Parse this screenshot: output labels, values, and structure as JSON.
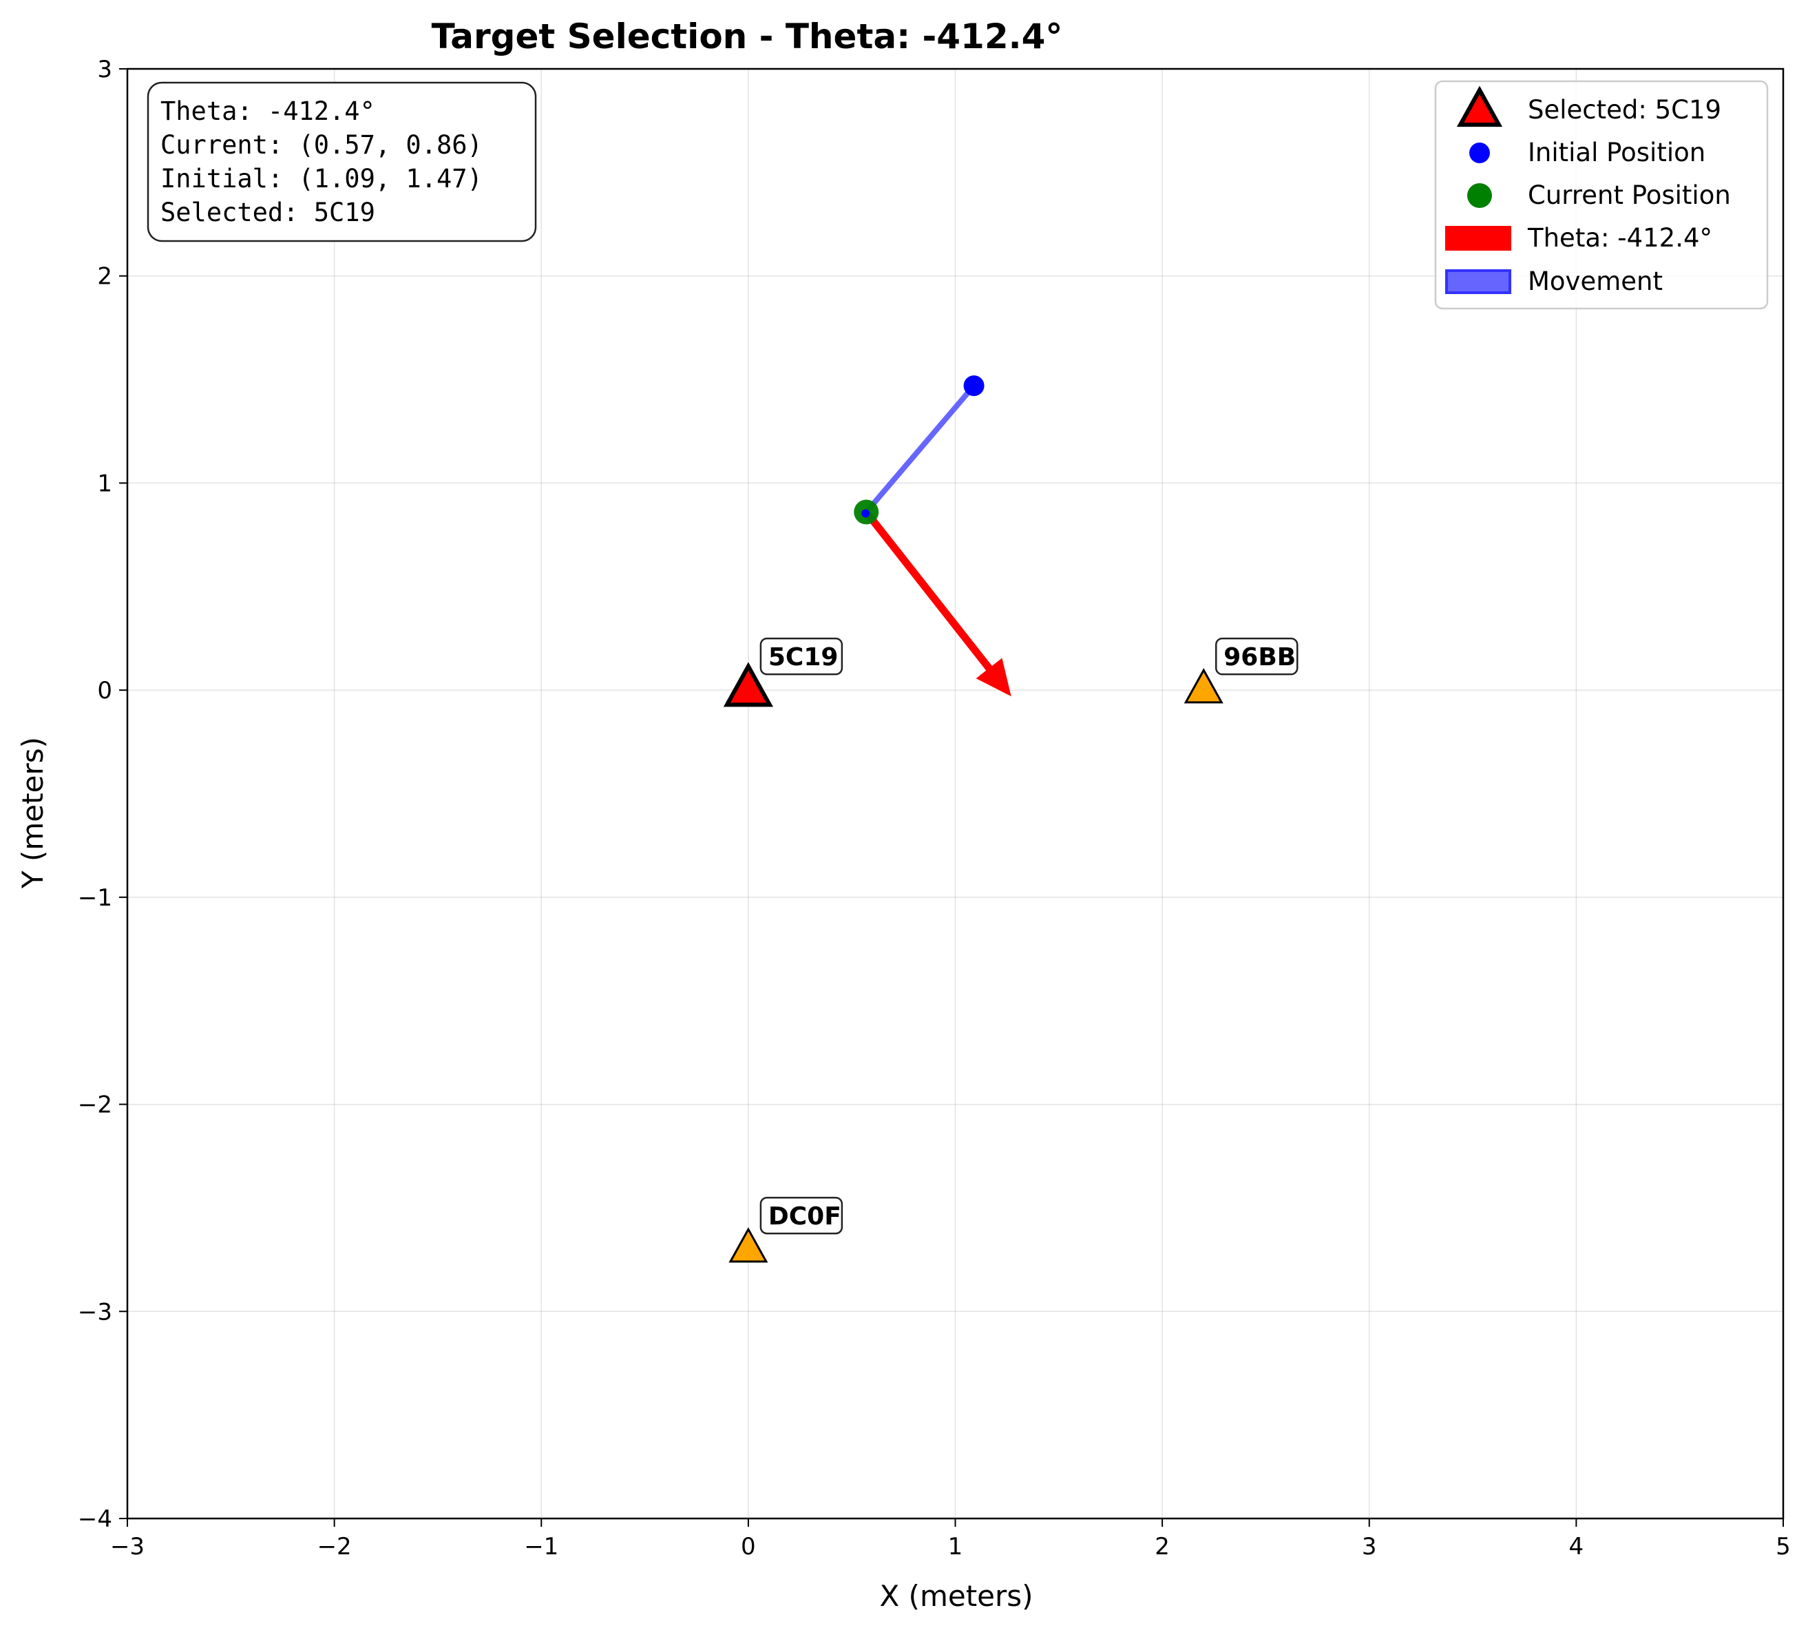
{
  "chart_data": {
    "type": "scatter",
    "title": "Target Selection - Theta: -412.4°",
    "xlabel": "X (meters)",
    "ylabel": "Y (meters)",
    "xlim": [
      -3,
      5
    ],
    "ylim": [
      -4,
      3
    ],
    "xticks": [
      -3,
      -2,
      -1,
      0,
      1,
      2,
      3,
      4,
      5
    ],
    "yticks": [
      -4,
      -3,
      -2,
      -1,
      0,
      1,
      2,
      3
    ],
    "xtick_labels": [
      "−3",
      "−2",
      "−1",
      "0",
      "1",
      "2",
      "3",
      "4",
      "5"
    ],
    "ytick_labels": [
      "−4",
      "−3",
      "−2",
      "−1",
      "0",
      "1",
      "2",
      "3"
    ],
    "grid": true,
    "targets": [
      {
        "id": "5C19",
        "x": 0.0,
        "y": 0.0,
        "selected": true,
        "color": "#ff0000"
      },
      {
        "id": "96BB",
        "x": 2.2,
        "y": 0.0,
        "selected": false,
        "color": "#ffa500"
      },
      {
        "id": "DC0F",
        "x": 0.0,
        "y": -2.7,
        "selected": false,
        "color": "#ffa500"
      }
    ],
    "initial_position": {
      "x": 1.09,
      "y": 1.47,
      "color": "#0000ff"
    },
    "current_position": {
      "x": 0.57,
      "y": 0.86,
      "color": "#008000"
    },
    "theta_arrow": {
      "from": [
        0.57,
        0.86
      ],
      "to": [
        1.27,
        -0.03
      ],
      "color": "#ff0000"
    },
    "movement": {
      "from": [
        1.09,
        1.47
      ],
      "to": [
        0.57,
        0.86
      ],
      "color": "#6666ff"
    },
    "legend": {
      "placement": "top-right",
      "entries": [
        {
          "label": "Selected: 5C19",
          "marker": "triangle"
        },
        {
          "label": "Initial Position",
          "marker": "circle-small"
        },
        {
          "label": "Current Position",
          "marker": "circle-large"
        },
        {
          "label": "Theta: -412.4°",
          "marker": "red-patch"
        },
        {
          "label": "Movement",
          "marker": "blue-patch"
        }
      ]
    },
    "info_box": {
      "placement": "top-left",
      "lines": [
        "Theta: -412.4°",
        "Current: (0.57, 0.86)",
        "Initial: (1.09, 1.47)",
        "Selected: 5C19"
      ]
    }
  }
}
